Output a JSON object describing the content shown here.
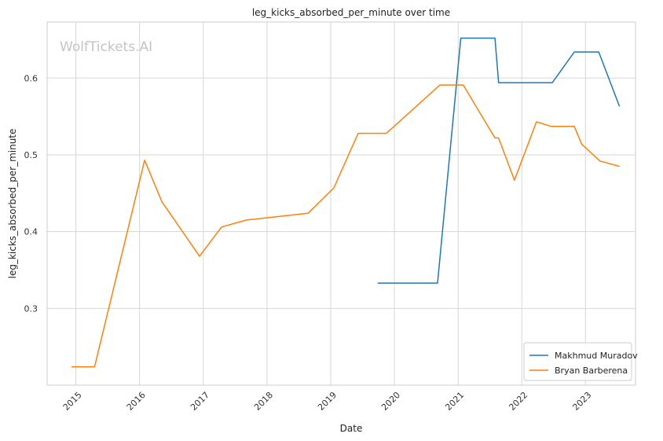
{
  "watermark": "WolfTickets.AI",
  "chart_data": {
    "type": "line",
    "title": "leg_kicks_absorbed_per_minute over time",
    "xlabel": "Date",
    "ylabel": "leg_kicks_absorbed_per_minute",
    "x_ticks": [
      "2015",
      "2016",
      "2017",
      "2018",
      "2019",
      "2020",
      "2021",
      "2022",
      "2023"
    ],
    "y_ticks": [
      "0.3",
      "0.4",
      "0.5",
      "0.6"
    ],
    "xlim": [
      "2014-07-20",
      "2023-10-15"
    ],
    "ylim": [
      0.2,
      0.673
    ],
    "grid": true,
    "legend_position": "lower-right",
    "series": [
      {
        "name": "Makhmud Muradov",
        "color": "#1f77b4",
        "points": [
          [
            "2019-09-28",
            0.333
          ],
          [
            "2020-09-05",
            0.333
          ],
          [
            "2021-01-16",
            0.652
          ],
          [
            "2021-07-31",
            0.652
          ],
          [
            "2021-08-21",
            0.594
          ],
          [
            "2022-06-25",
            0.594
          ],
          [
            "2022-10-29",
            0.634
          ],
          [
            "2023-03-18",
            0.634
          ],
          [
            "2023-07-15",
            0.563
          ]
        ]
      },
      {
        "name": "Bryan Barberena",
        "color": "#ff7f0e",
        "points": [
          [
            "2014-12-06",
            0.224
          ],
          [
            "2015-04-18",
            0.224
          ],
          [
            "2016-01-30",
            0.493
          ],
          [
            "2016-05-08",
            0.439
          ],
          [
            "2016-12-10",
            0.368
          ],
          [
            "2017-04-15",
            0.406
          ],
          [
            "2017-09-02",
            0.415
          ],
          [
            "2018-08-25",
            0.424
          ],
          [
            "2019-01-19",
            0.457
          ],
          [
            "2019-06-08",
            0.528
          ],
          [
            "2019-11-16",
            0.528
          ],
          [
            "2020-09-19",
            0.591
          ],
          [
            "2021-01-30",
            0.591
          ],
          [
            "2021-07-31",
            0.522
          ],
          [
            "2021-08-21",
            0.522
          ],
          [
            "2021-11-20",
            0.467
          ],
          [
            "2022-03-26",
            0.543
          ],
          [
            "2022-06-18",
            0.537
          ],
          [
            "2022-10-29",
            0.537
          ],
          [
            "2022-12-10",
            0.514
          ],
          [
            "2023-03-25",
            0.492
          ],
          [
            "2023-07-15",
            0.485
          ]
        ]
      }
    ]
  }
}
